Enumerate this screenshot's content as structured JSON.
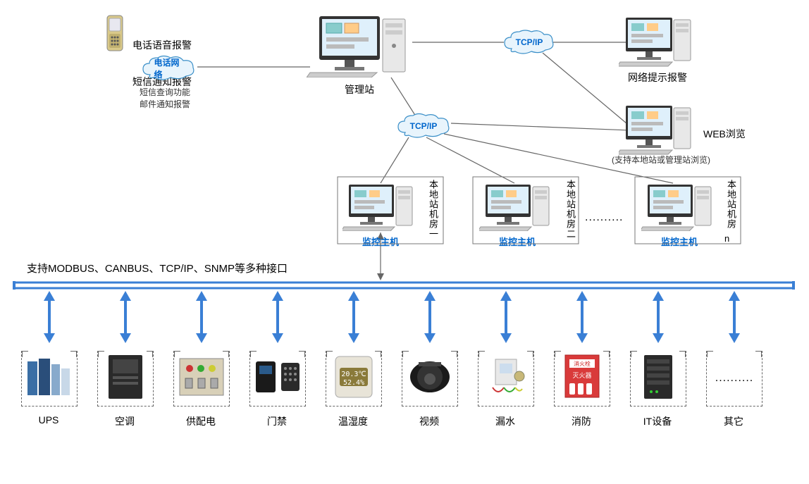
{
  "diagram": {
    "type": "network",
    "background_color": "#ffffff",
    "line_color": "#666666",
    "bus_color": "#3a7fd5",
    "arrow_color": "#3a7fd5",
    "accent_text_color": "#0066cc"
  },
  "phone_node": {
    "labels": [
      "电话语音报警",
      "短信通知报警"
    ],
    "cloud_label": "电话网络",
    "sublabels": [
      "短信查询功能",
      "邮件通知报警"
    ]
  },
  "mgmt_station": {
    "label": "管理站"
  },
  "net_alarm": {
    "label": "网络提示报警"
  },
  "web_browse": {
    "label": "WEB浏览",
    "subtitle": "(支持本地站或管理站浏览)"
  },
  "tcp_clouds": {
    "label": "TCP/IP"
  },
  "local_stations": {
    "link_label": "监控主机",
    "side_labels": [
      "本地站机房一",
      "本地站机房二",
      "本地站机房"
    ],
    "suffix": "n"
  },
  "bus": {
    "protocols_label": "支持MODBUS、CANBUS、TCP/IP、SNMP等多种接口"
  },
  "devices": [
    {
      "key": "ups",
      "label": "UPS"
    },
    {
      "key": "ac",
      "label": "空调"
    },
    {
      "key": "power",
      "label": "供配电"
    },
    {
      "key": "access",
      "label": "门禁"
    },
    {
      "key": "temp",
      "label": "温湿度",
      "readout1": "20.3℃",
      "readout2": "52.4%"
    },
    {
      "key": "video",
      "label": "视频"
    },
    {
      "key": "leak",
      "label": "漏水"
    },
    {
      "key": "fire",
      "label": "消防",
      "box_text1": "消火栓",
      "box_text2": "灭火器"
    },
    {
      "key": "it",
      "label": "IT设备"
    },
    {
      "key": "other",
      "label": "其它"
    }
  ]
}
